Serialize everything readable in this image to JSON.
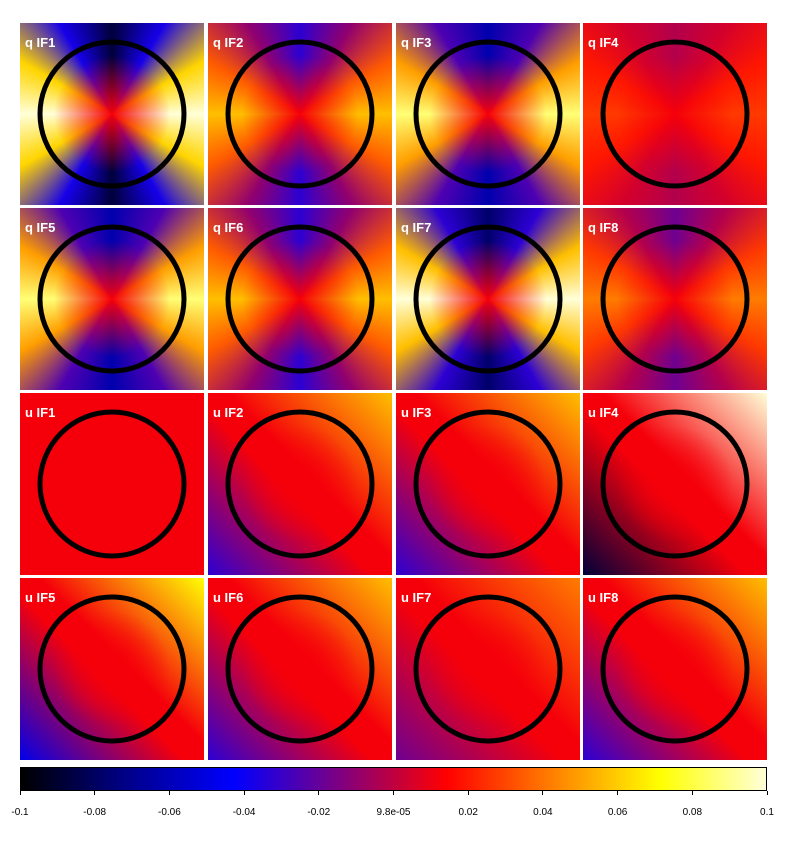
{
  "chart_data": {
    "type": "heatmap",
    "description_grid": "4x4 grid of polarization maps",
    "panels": [
      {
        "label": "q IF1",
        "kind": "q",
        "amp": 0.1
      },
      {
        "label": "q IF2",
        "kind": "q",
        "amp": 0.045
      },
      {
        "label": "q IF3",
        "kind": "q",
        "amp": 0.075
      },
      {
        "label": "q IF4",
        "kind": "q",
        "amp": 0.015
      },
      {
        "label": "q IF5",
        "kind": "q",
        "amp": 0.075
      },
      {
        "label": "q IF6",
        "kind": "q",
        "amp": 0.045
      },
      {
        "label": "q IF7",
        "kind": "q",
        "amp": 0.09
      },
      {
        "label": "q IF8",
        "kind": "q",
        "amp": 0.03
      },
      {
        "label": "u IF1",
        "kind": "u",
        "amp": 0.0
      },
      {
        "label": "u IF2",
        "kind": "u",
        "amp": 0.045
      },
      {
        "label": "u IF3",
        "kind": "u",
        "amp": 0.045
      },
      {
        "label": "u IF4",
        "kind": "u",
        "amp": 0.1
      },
      {
        "label": "u IF5",
        "kind": "u",
        "amp": 0.06
      },
      {
        "label": "u IF6",
        "kind": "u",
        "amp": 0.045
      },
      {
        "label": "u IF7",
        "kind": "u",
        "amp": 0.03
      },
      {
        "label": "u IF8",
        "kind": "u",
        "amp": 0.045
      }
    ],
    "colorbar": {
      "range": [
        -0.1,
        0.1
      ],
      "colormap": [
        "#000000",
        "#00008a",
        "#0000ff",
        "#7f0080",
        "#ff0000",
        "#ff8000",
        "#ffff00",
        "#ffffd8"
      ],
      "tick_labels": [
        "-0.1",
        "-0.08",
        "-0.06",
        "-0.04",
        "-0.02",
        "9.8e-05",
        "0.02",
        "0.04",
        "0.06",
        "0.08",
        "0.1"
      ]
    },
    "overlay": "circle"
  }
}
